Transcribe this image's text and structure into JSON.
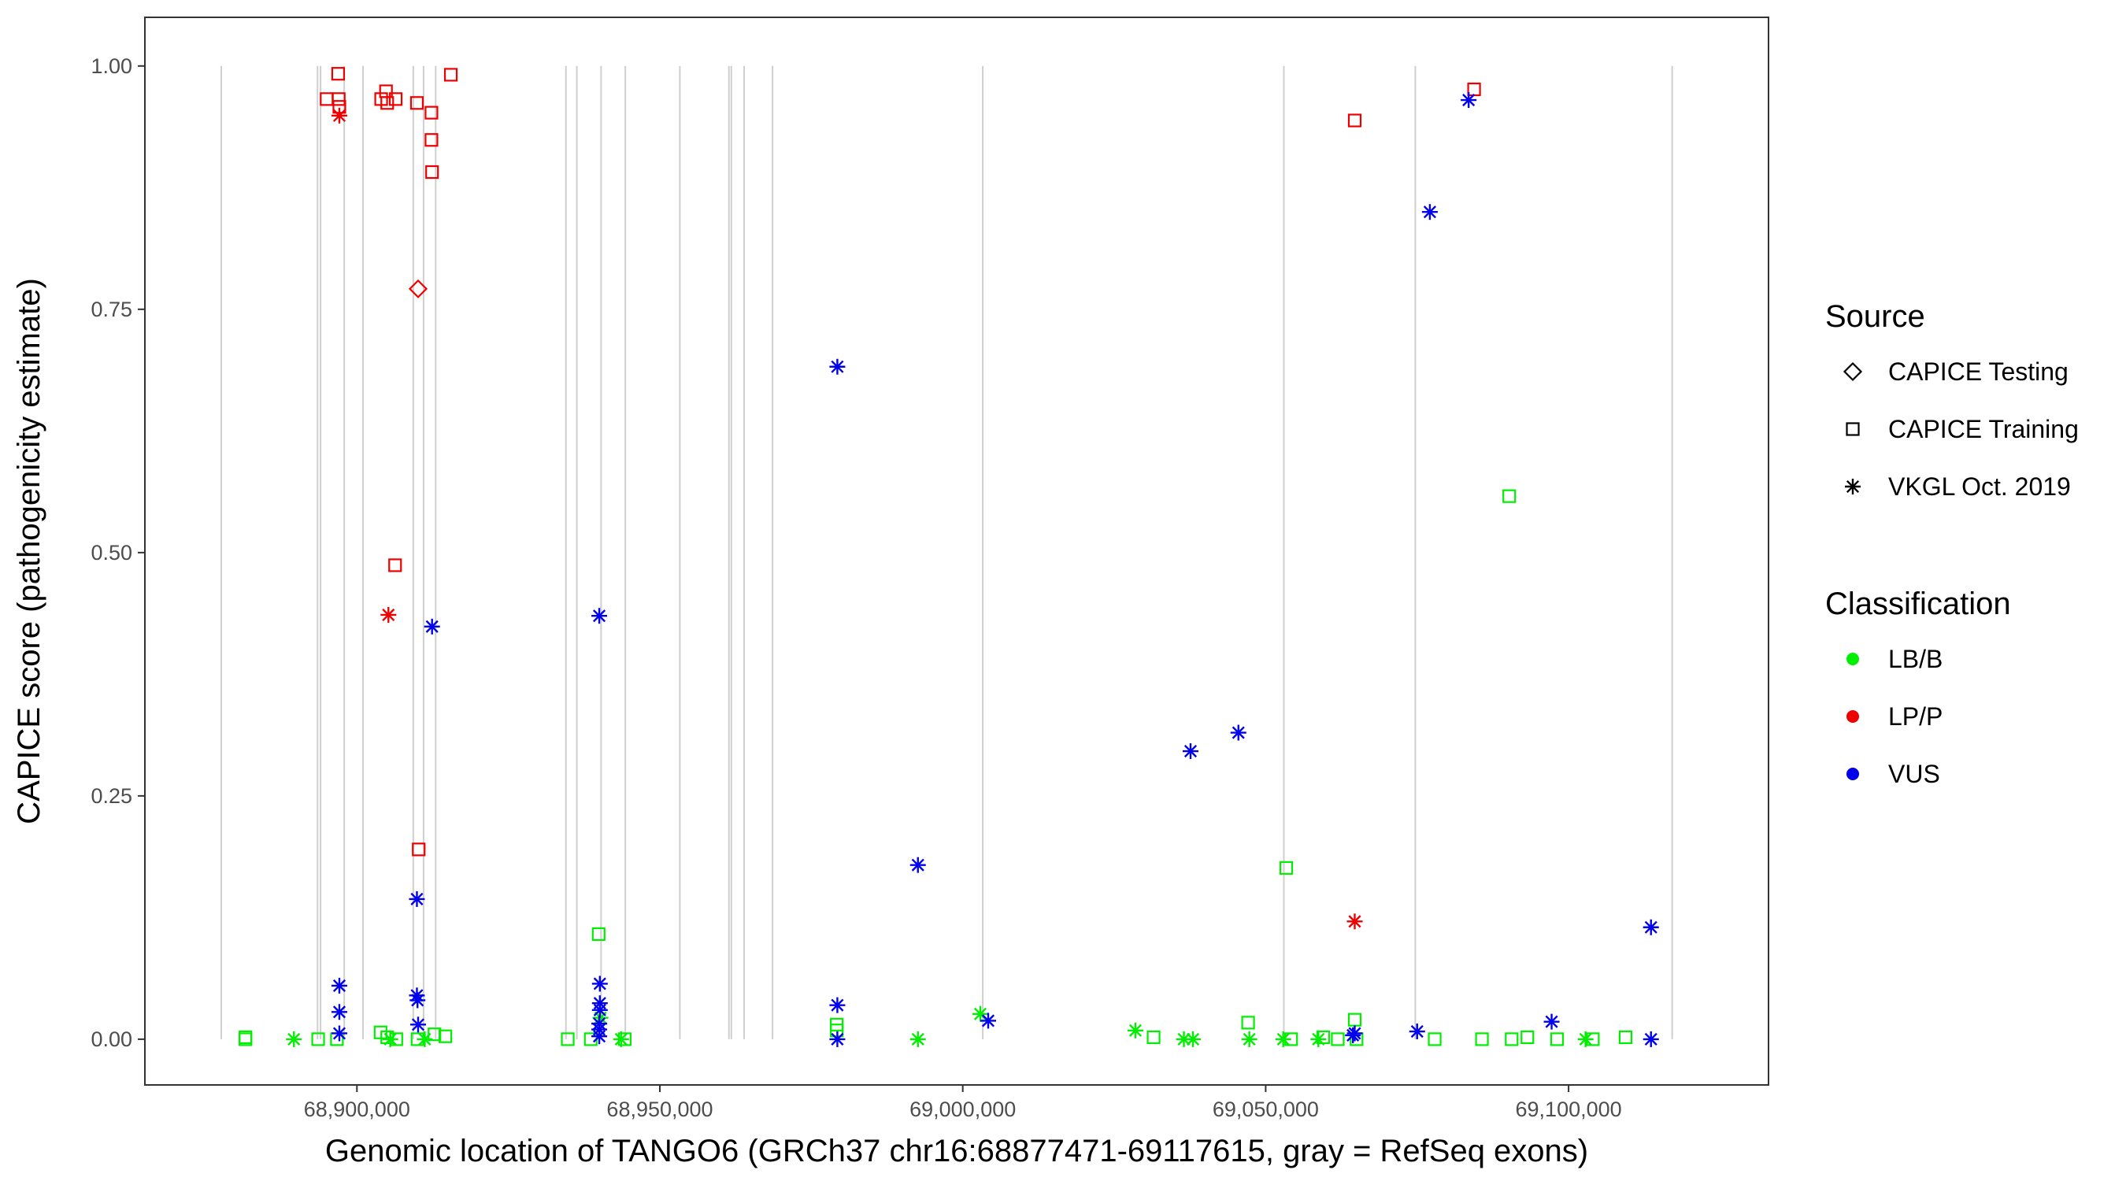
{
  "chart_data": {
    "type": "scatter",
    "xlabel": "Genomic location of TANGO6 (GRCh37 chr16:68877471-69117615, gray = RefSeq exons)",
    "ylabel": "CAPICE score (pathogenicity estimate)",
    "xlim": [
      68865000,
      69133000
    ],
    "ylim": [
      -0.047,
      1.05
    ],
    "x_ticks": [
      68900000,
      68950000,
      69000000,
      69050000,
      69100000
    ],
    "x_tick_labels": [
      "68,900,000",
      "68,950,000",
      "69,000,000",
      "69,050,000",
      "69,100,000"
    ],
    "y_ticks": [
      0,
      0.25,
      0.5,
      0.75,
      1
    ],
    "y_tick_labels": [
      "0.00",
      "0.25",
      "0.50",
      "0.75",
      "1.00"
    ],
    "grid": false,
    "exons": [
      68877600,
      68893500,
      68894000,
      68897900,
      68901000,
      68909300,
      68911000,
      68913000,
      68934500,
      68936300,
      68940300,
      68944300,
      68953300,
      68961400,
      68961800,
      68963900,
      68968600,
      69003300,
      69053000,
      69074700,
      69117100
    ],
    "legend": {
      "placement": "right",
      "source_title": "Source",
      "classification_title": "Classification",
      "shapes": [
        {
          "label": "CAPICE Testing",
          "shape": "diamond"
        },
        {
          "label": "CAPICE Training",
          "shape": "square"
        },
        {
          "label": "VKGL Oct. 2019",
          "shape": "asterisk"
        }
      ],
      "classes": [
        {
          "label": "LB/B",
          "color": "#00ee00"
        },
        {
          "label": "LP/P",
          "color": "#ee0000"
        },
        {
          "label": "VUS",
          "color": "#0000ee"
        }
      ]
    },
    "series": [
      {
        "name": "LB/B",
        "color": "#00ee00",
        "points": [
          {
            "x": 68881600,
            "y": 0.002,
            "shape": "square"
          },
          {
            "x": 68881600,
            "y": 0.0,
            "shape": "square"
          },
          {
            "x": 68889600,
            "y": 0.0,
            "shape": "asterisk"
          },
          {
            "x": 68893600,
            "y": 0.0,
            "shape": "square"
          },
          {
            "x": 68896700,
            "y": 0.0,
            "shape": "square"
          },
          {
            "x": 68903900,
            "y": 0.007,
            "shape": "square"
          },
          {
            "x": 68905000,
            "y": 0.002,
            "shape": "square"
          },
          {
            "x": 68905500,
            "y": 0.0,
            "shape": "asterisk"
          },
          {
            "x": 68906500,
            "y": 0.0,
            "shape": "square"
          },
          {
            "x": 68910000,
            "y": 0.0,
            "shape": "square"
          },
          {
            "x": 68911200,
            "y": 0.0,
            "shape": "asterisk"
          },
          {
            "x": 68912800,
            "y": 0.005,
            "shape": "square"
          },
          {
            "x": 68914600,
            "y": 0.003,
            "shape": "square"
          },
          {
            "x": 68934800,
            "y": 0.0,
            "shape": "square"
          },
          {
            "x": 68938600,
            "y": 0.0,
            "shape": "square"
          },
          {
            "x": 68939900,
            "y": 0.108,
            "shape": "square"
          },
          {
            "x": 68940200,
            "y": 0.022,
            "shape": "asterisk"
          },
          {
            "x": 68943600,
            "y": 0.0,
            "shape": "asterisk"
          },
          {
            "x": 68944200,
            "y": 0.0,
            "shape": "square"
          },
          {
            "x": 68979200,
            "y": 0.015,
            "shape": "square"
          },
          {
            "x": 68979200,
            "y": 0.009,
            "shape": "square"
          },
          {
            "x": 68992600,
            "y": 0.0,
            "shape": "asterisk"
          },
          {
            "x": 69002900,
            "y": 0.026,
            "shape": "asterisk"
          },
          {
            "x": 69028500,
            "y": 0.009,
            "shape": "asterisk"
          },
          {
            "x": 69031500,
            "y": 0.002,
            "shape": "square"
          },
          {
            "x": 69036500,
            "y": 0.0,
            "shape": "asterisk"
          },
          {
            "x": 69038000,
            "y": 0.0,
            "shape": "asterisk"
          },
          {
            "x": 69047100,
            "y": 0.017,
            "shape": "square"
          },
          {
            "x": 69047300,
            "y": 0.0,
            "shape": "asterisk"
          },
          {
            "x": 69052900,
            "y": 0.0,
            "shape": "asterisk"
          },
          {
            "x": 69053400,
            "y": 0.176,
            "shape": "square"
          },
          {
            "x": 69054200,
            "y": 0.0,
            "shape": "square"
          },
          {
            "x": 69058700,
            "y": 0.0,
            "shape": "asterisk"
          },
          {
            "x": 69059500,
            "y": 0.002,
            "shape": "square"
          },
          {
            "x": 69061900,
            "y": 0.0,
            "shape": "square"
          },
          {
            "x": 69064700,
            "y": 0.02,
            "shape": "square"
          },
          {
            "x": 69065000,
            "y": 0.0,
            "shape": "square"
          },
          {
            "x": 69077900,
            "y": 0.0,
            "shape": "square"
          },
          {
            "x": 69085700,
            "y": 0.0,
            "shape": "square"
          },
          {
            "x": 69090200,
            "y": 0.558,
            "shape": "square"
          },
          {
            "x": 69090600,
            "y": 0.0,
            "shape": "square"
          },
          {
            "x": 69093200,
            "y": 0.002,
            "shape": "square"
          },
          {
            "x": 69098100,
            "y": 0.0,
            "shape": "square"
          },
          {
            "x": 69102800,
            "y": 0.0,
            "shape": "asterisk"
          },
          {
            "x": 69104000,
            "y": 0.0,
            "shape": "square"
          },
          {
            "x": 69109400,
            "y": 0.002,
            "shape": "square"
          }
        ]
      },
      {
        "name": "LP/P",
        "color": "#ee0000",
        "points": [
          {
            "x": 68895000,
            "y": 0.966,
            "shape": "square"
          },
          {
            "x": 68896900,
            "y": 0.992,
            "shape": "square"
          },
          {
            "x": 68897000,
            "y": 0.966,
            "shape": "square"
          },
          {
            "x": 68897100,
            "y": 0.958,
            "shape": "square"
          },
          {
            "x": 68897100,
            "y": 0.949,
            "shape": "asterisk"
          },
          {
            "x": 68904000,
            "y": 0.966,
            "shape": "square"
          },
          {
            "x": 68904800,
            "y": 0.974,
            "shape": "square"
          },
          {
            "x": 68905000,
            "y": 0.962,
            "shape": "square"
          },
          {
            "x": 68906400,
            "y": 0.966,
            "shape": "square"
          },
          {
            "x": 68905200,
            "y": 0.436,
            "shape": "asterisk"
          },
          {
            "x": 68906300,
            "y": 0.487,
            "shape": "square"
          },
          {
            "x": 68909900,
            "y": 0.962,
            "shape": "square"
          },
          {
            "x": 68910100,
            "y": 0.771,
            "shape": "diamond"
          },
          {
            "x": 68910200,
            "y": 0.195,
            "shape": "square"
          },
          {
            "x": 68912300,
            "y": 0.952,
            "shape": "square"
          },
          {
            "x": 68912300,
            "y": 0.924,
            "shape": "square"
          },
          {
            "x": 68912400,
            "y": 0.891,
            "shape": "square"
          },
          {
            "x": 68915500,
            "y": 0.991,
            "shape": "square"
          },
          {
            "x": 69064700,
            "y": 0.944,
            "shape": "square"
          },
          {
            "x": 69064700,
            "y": 0.121,
            "shape": "asterisk"
          },
          {
            "x": 69084400,
            "y": 0.976,
            "shape": "square"
          }
        ]
      },
      {
        "name": "VUS",
        "color": "#0000ee",
        "points": [
          {
            "x": 68897100,
            "y": 0.055,
            "shape": "asterisk"
          },
          {
            "x": 68897100,
            "y": 0.028,
            "shape": "asterisk"
          },
          {
            "x": 68897100,
            "y": 0.006,
            "shape": "asterisk"
          },
          {
            "x": 68909900,
            "y": 0.144,
            "shape": "asterisk"
          },
          {
            "x": 68909900,
            "y": 0.045,
            "shape": "asterisk"
          },
          {
            "x": 68910000,
            "y": 0.04,
            "shape": "asterisk"
          },
          {
            "x": 68910100,
            "y": 0.015,
            "shape": "asterisk"
          },
          {
            "x": 68912400,
            "y": 0.424,
            "shape": "asterisk"
          },
          {
            "x": 68940000,
            "y": 0.435,
            "shape": "asterisk"
          },
          {
            "x": 68940100,
            "y": 0.057,
            "shape": "asterisk"
          },
          {
            "x": 68940100,
            "y": 0.037,
            "shape": "asterisk"
          },
          {
            "x": 68940100,
            "y": 0.03,
            "shape": "asterisk"
          },
          {
            "x": 68940000,
            "y": 0.016,
            "shape": "asterisk"
          },
          {
            "x": 68940000,
            "y": 0.01,
            "shape": "asterisk"
          },
          {
            "x": 68940000,
            "y": 0.003,
            "shape": "asterisk"
          },
          {
            "x": 68979300,
            "y": 0.691,
            "shape": "asterisk"
          },
          {
            "x": 68979300,
            "y": 0.035,
            "shape": "asterisk"
          },
          {
            "x": 68979300,
            "y": 0.0,
            "shape": "asterisk"
          },
          {
            "x": 68992600,
            "y": 0.179,
            "shape": "asterisk"
          },
          {
            "x": 69004200,
            "y": 0.019,
            "shape": "asterisk"
          },
          {
            "x": 69037600,
            "y": 0.296,
            "shape": "asterisk"
          },
          {
            "x": 69045500,
            "y": 0.315,
            "shape": "asterisk"
          },
          {
            "x": 69064400,
            "y": 0.004,
            "shape": "asterisk"
          },
          {
            "x": 69064700,
            "y": 0.006,
            "shape": "asterisk"
          },
          {
            "x": 69075000,
            "y": 0.008,
            "shape": "asterisk"
          },
          {
            "x": 69077100,
            "y": 0.85,
            "shape": "asterisk"
          },
          {
            "x": 69083500,
            "y": 0.965,
            "shape": "asterisk"
          },
          {
            "x": 69097200,
            "y": 0.018,
            "shape": "asterisk"
          },
          {
            "x": 69113600,
            "y": 0.115,
            "shape": "asterisk"
          },
          {
            "x": 69113600,
            "y": 0.0,
            "shape": "asterisk"
          }
        ]
      }
    ]
  }
}
